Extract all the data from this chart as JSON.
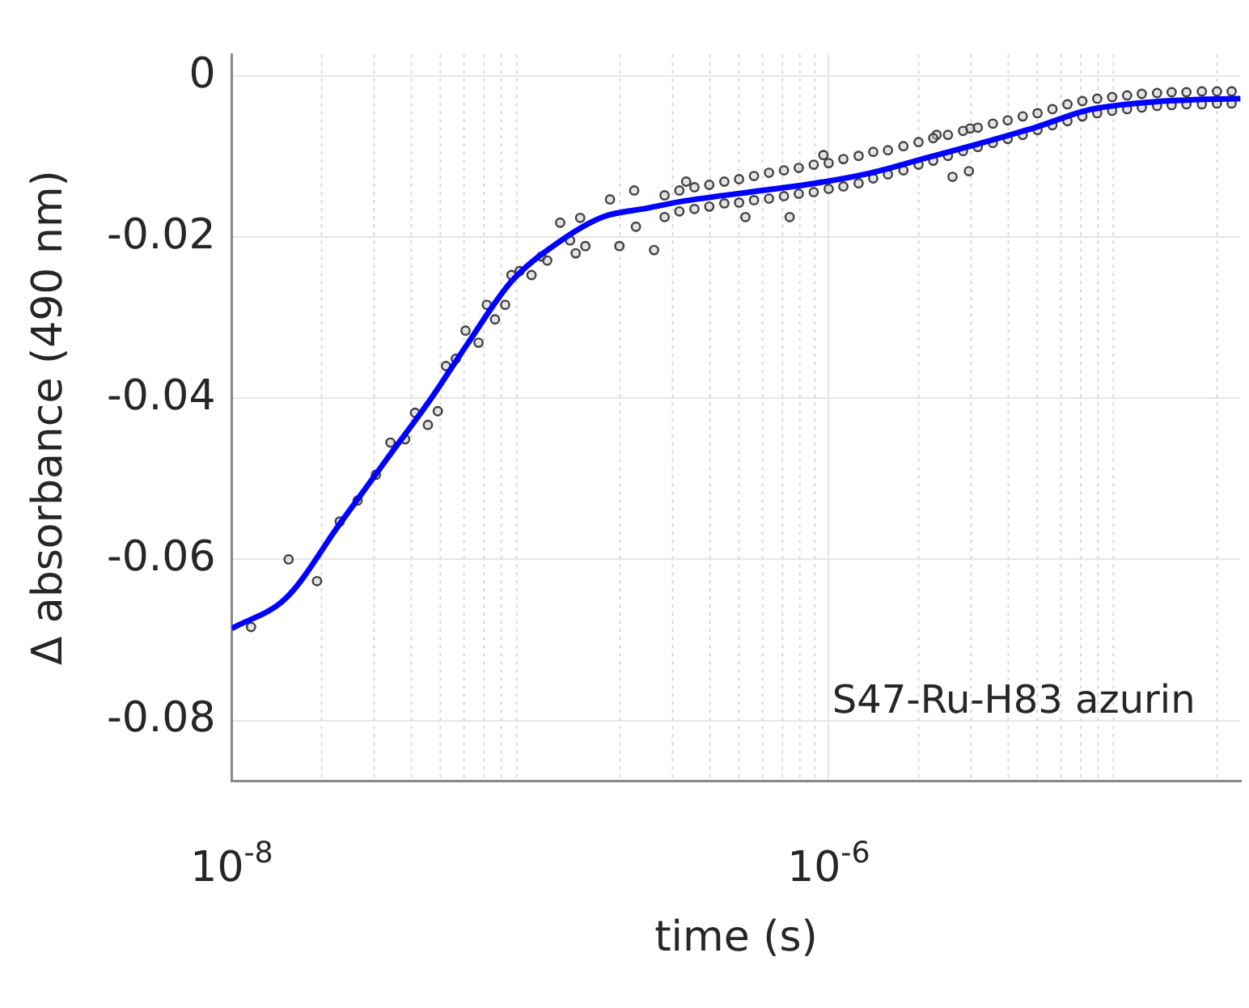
{
  "chart_data": {
    "type": "scatter",
    "xlabel": "time (s)",
    "ylabel": "Δ absorbance (490 nm)",
    "log": "x",
    "grid": true,
    "legend": false,
    "xlim": [
      1e-08,
      2.4e-05
    ],
    "xticks": [
      {
        "value": 1e-08,
        "label": "10$^{-8}$"
      },
      {
        "value": 1e-06,
        "label": "10$^{-6}$"
      }
    ],
    "ylim": [
      -0.0875,
      0.0027
    ],
    "yticks": [
      0,
      -0.02,
      -0.04,
      -0.06,
      -0.08
    ],
    "annotations": [
      "S47-Ru-H83 azurin"
    ],
    "series": [
      {
        "type": "scatter",
        "marker": "circle",
        "color": "#404040",
        "x": [
          1.16e-08,
          1.55e-08,
          1.93e-08,
          2.3e-08,
          2.64e-08,
          3.04e-08,
          3.4e-08,
          3.81e-08,
          4.11e-08,
          4.54e-08,
          4.9e-08,
          5.22e-08,
          5.63e-08,
          6.07e-08,
          6.71e-08,
          7.15e-08,
          7.62e-08,
          8.24e-08,
          8.65e-08,
          9.22e-08,
          1.01e-07,
          1.09e-07,
          1.14e-07,
          1.26e-07,
          1.36e-07,
          1.42e-07,
          1.47e-07,
          1.53e-07,
          1.85e-07,
          1.99e-07,
          2.23e-07,
          2.26e-07,
          2.6e-07,
          3.33e-07,
          5.26e-07,
          7.4e-07,
          9.6e-07,
          2.3e-06,
          2.98e-06,
          2.6e-06,
          2.95e-06,
          2.82e-07,
          2.82e-07,
          3.16e-07,
          3.16e-07,
          3.55e-07,
          3.55e-07,
          3.98e-07,
          3.98e-07,
          4.47e-07,
          4.47e-07,
          5.01e-07,
          5.01e-07,
          5.62e-07,
          5.62e-07,
          6.31e-07,
          6.31e-07,
          7.08e-07,
          7.08e-07,
          7.94e-07,
          7.94e-07,
          8.91e-07,
          8.91e-07,
          1e-06,
          1e-06,
          1.12e-06,
          1.12e-06,
          1.26e-06,
          1.26e-06,
          1.41e-06,
          1.41e-06,
          1.58e-06,
          1.58e-06,
          1.78e-06,
          1.78e-06,
          2e-06,
          2e-06,
          2.24e-06,
          2.24e-06,
          2.51e-06,
          2.51e-06,
          2.82e-06,
          2.82e-06,
          3.16e-06,
          3.16e-06,
          3.55e-06,
          3.55e-06,
          3.98e-06,
          3.98e-06,
          4.47e-06,
          4.47e-06,
          5.01e-06,
          5.01e-06,
          5.62e-06,
          5.62e-06,
          6.31e-06,
          6.31e-06,
          7.08e-06,
          7.08e-06,
          7.94e-06,
          7.94e-06,
          8.91e-06,
          8.91e-06,
          1e-05,
          1e-05,
          1.12e-05,
          1.12e-05,
          1.26e-05,
          1.26e-05,
          1.41e-05,
          1.41e-05,
          1.58e-05,
          1.58e-05,
          1.78e-05,
          1.78e-05,
          2e-05,
          2e-05,
          2.24e-05,
          2.24e-05
        ],
        "values": [
          -0.0684,
          -0.06,
          -0.0627,
          -0.0553,
          -0.0527,
          -0.0495,
          -0.0455,
          -0.0451,
          -0.0418,
          -0.0433,
          -0.0416,
          -0.036,
          -0.0351,
          -0.0316,
          -0.0331,
          -0.0284,
          -0.0302,
          -0.0284,
          -0.0247,
          -0.0242,
          -0.0247,
          -0.0224,
          -0.0229,
          -0.0182,
          -0.0204,
          -0.022,
          -0.0176,
          -0.0211,
          -0.0153,
          -0.0211,
          -0.0142,
          -0.0187,
          -0.0216,
          -0.0131,
          -0.0175,
          -0.0175,
          -0.0098,
          -0.0073,
          -0.0065,
          -0.0125,
          -0.0118,
          -0.0148,
          -0.0175,
          -0.0142,
          -0.0168,
          -0.0138,
          -0.0165,
          -0.0135,
          -0.0162,
          -0.0131,
          -0.0158,
          -0.0128,
          -0.0157,
          -0.0124,
          -0.0154,
          -0.012,
          -0.0152,
          -0.0117,
          -0.0149,
          -0.0114,
          -0.0146,
          -0.011,
          -0.0144,
          -0.0108,
          -0.014,
          -0.0103,
          -0.0137,
          -0.0099,
          -0.0133,
          -0.0094,
          -0.0127,
          -0.0092,
          -0.0122,
          -0.0087,
          -0.0117,
          -0.0082,
          -0.011,
          -0.0077,
          -0.0105,
          -0.0073,
          -0.0099,
          -0.0068,
          -0.0093,
          -0.0064,
          -0.0088,
          -0.0059,
          -0.0083,
          -0.0055,
          -0.0078,
          -0.005,
          -0.0073,
          -0.0046,
          -0.0067,
          -0.0041,
          -0.0061,
          -0.0035,
          -0.0056,
          -0.0031,
          -0.005,
          -0.0028,
          -0.0046,
          -0.0026,
          -0.0043,
          -0.0024,
          -0.0041,
          -0.0022,
          -0.0039,
          -0.0021,
          -0.0037,
          -0.002,
          -0.0036,
          -0.002,
          -0.0035,
          -0.0019,
          -0.0035,
          -0.0019,
          -0.0034,
          -0.0019,
          -0.0034
        ]
      },
      {
        "type": "line",
        "marker": "none",
        "line_style": "solid",
        "color": "#0000ff",
        "x": [
          1e-08,
          1.53e-08,
          2.3e-08,
          3.27e-08,
          4.66e-08,
          6.15e-08,
          8.65e-08,
          1.26e-07,
          1.75e-07,
          2.46e-07,
          3.17e-07,
          5.96e-07,
          9.03e-07,
          1.39e-06,
          2.1e-06,
          3.19e-06,
          4.9e-06,
          7.43e-06,
          1.13e-05,
          1.73e-05,
          2.4e-05
        ],
        "values": [
          -0.0686,
          -0.0647,
          -0.0556,
          -0.0478,
          -0.04,
          -0.0333,
          -0.0255,
          -0.0205,
          -0.0175,
          -0.0164,
          -0.0156,
          -0.0142,
          -0.0133,
          -0.012,
          -0.0102,
          -0.0084,
          -0.0064,
          -0.0042,
          -0.0033,
          -0.0029,
          -0.0028
        ]
      }
    ]
  }
}
